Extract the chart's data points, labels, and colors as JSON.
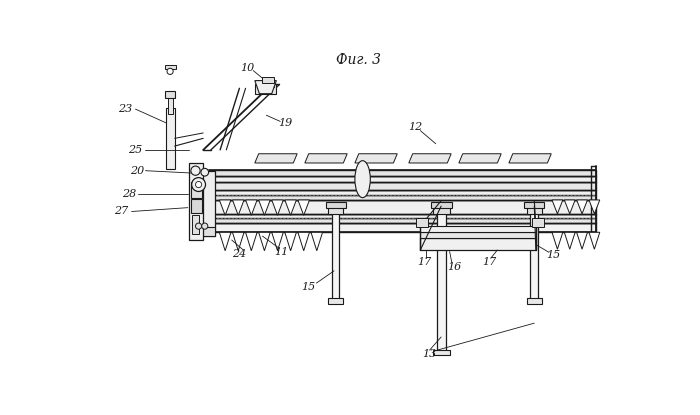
{
  "bg_color": "#ffffff",
  "line_color": "#1a1a1a",
  "fig_caption": "Фиг. 3",
  "lw_main": 1.0,
  "lw_thin": 0.6,
  "lw_dash": 0.5
}
